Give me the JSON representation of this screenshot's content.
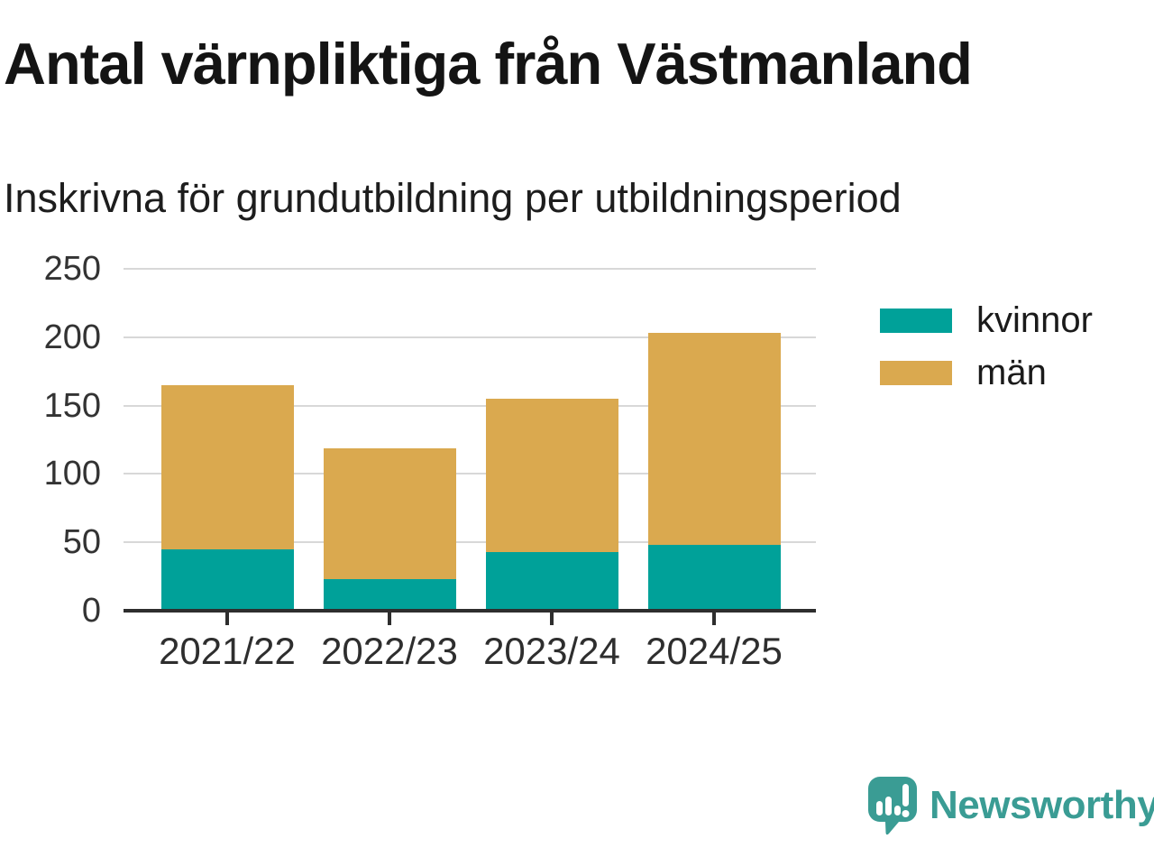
{
  "header": {
    "title": "Antal värnpliktiga från Västmanland",
    "subtitle": "Inskrivna för grundutbildning per utbildningsperiod"
  },
  "chart_data": {
    "type": "bar",
    "stacked": true,
    "title": "Antal värnpliktiga från Västmanland",
    "subtitle": "Inskrivna för grundutbildning per utbildningsperiod",
    "categories": [
      "2021/22",
      "2022/23",
      "2023/24",
      "2024/25"
    ],
    "series": [
      {
        "name": "kvinnor",
        "color": "#00a199",
        "values": [
          45,
          23,
          43,
          48
        ]
      },
      {
        "name": "män",
        "color": "#daa94f",
        "values": [
          120,
          96,
          112,
          155
        ]
      }
    ],
    "stacked_totals": [
      165,
      119,
      155,
      203
    ],
    "xlabel": "",
    "ylabel": "",
    "ylim": [
      0,
      250
    ],
    "yticks": [
      0,
      50,
      100,
      150,
      200,
      250
    ],
    "grid": true,
    "legend_position": "right",
    "grid_color": "#d8d8d8",
    "axis_color": "#2e2e2e",
    "tick_label_color": "#333333"
  },
  "legend": {
    "items": [
      {
        "label": "kvinnor",
        "color": "#00a199"
      },
      {
        "label": "män",
        "color": "#daa94f"
      }
    ]
  },
  "footer": {
    "brand": "Newsworthy",
    "brand_color": "#3a9c94"
  }
}
